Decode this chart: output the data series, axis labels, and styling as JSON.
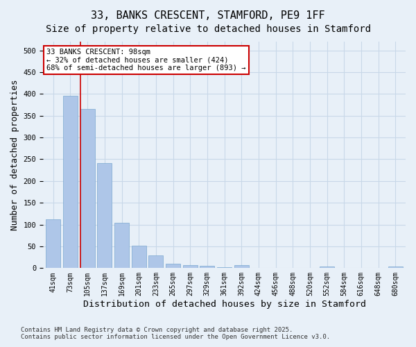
{
  "title_line1": "33, BANKS CRESCENT, STAMFORD, PE9 1FF",
  "title_line2": "Size of property relative to detached houses in Stamford",
  "xlabel": "Distribution of detached houses by size in Stamford",
  "ylabel": "Number of detached properties",
  "categories": [
    "41sqm",
    "73sqm",
    "105sqm",
    "137sqm",
    "169sqm",
    "201sqm",
    "233sqm",
    "265sqm",
    "297sqm",
    "329sqm",
    "361sqm",
    "392sqm",
    "424sqm",
    "456sqm",
    "488sqm",
    "520sqm",
    "552sqm",
    "584sqm",
    "616sqm",
    "648sqm",
    "680sqm"
  ],
  "values": [
    112,
    396,
    365,
    241,
    104,
    51,
    30,
    10,
    7,
    5,
    2,
    7,
    1,
    0,
    1,
    0,
    3,
    0,
    1,
    0,
    3
  ],
  "bar_color": "#aec6e8",
  "bar_edge_color": "#7aa8d0",
  "grid_color": "#c8d8e8",
  "background_color": "#e8f0f8",
  "property_line_x": 2,
  "property_line_label": "33 BANKS CRESCENT: 98sqm",
  "annotation_line2": "← 32% of detached houses are smaller (424)",
  "annotation_line3": "68% of semi-detached houses are larger (893) →",
  "annotation_box_color": "#ffffff",
  "annotation_box_edge_color": "#cc0000",
  "vline_color": "#cc0000",
  "footer_line1": "Contains HM Land Registry data © Crown copyright and database right 2025.",
  "footer_line2": "Contains public sector information licensed under the Open Government Licence v3.0.",
  "ylim": [
    0,
    520
  ],
  "yticks": [
    0,
    50,
    100,
    150,
    200,
    250,
    300,
    350,
    400,
    450,
    500
  ],
  "title_fontsize": 11,
  "subtitle_fontsize": 10,
  "axis_label_fontsize": 9,
  "tick_fontsize": 7,
  "footer_fontsize": 6.5
}
